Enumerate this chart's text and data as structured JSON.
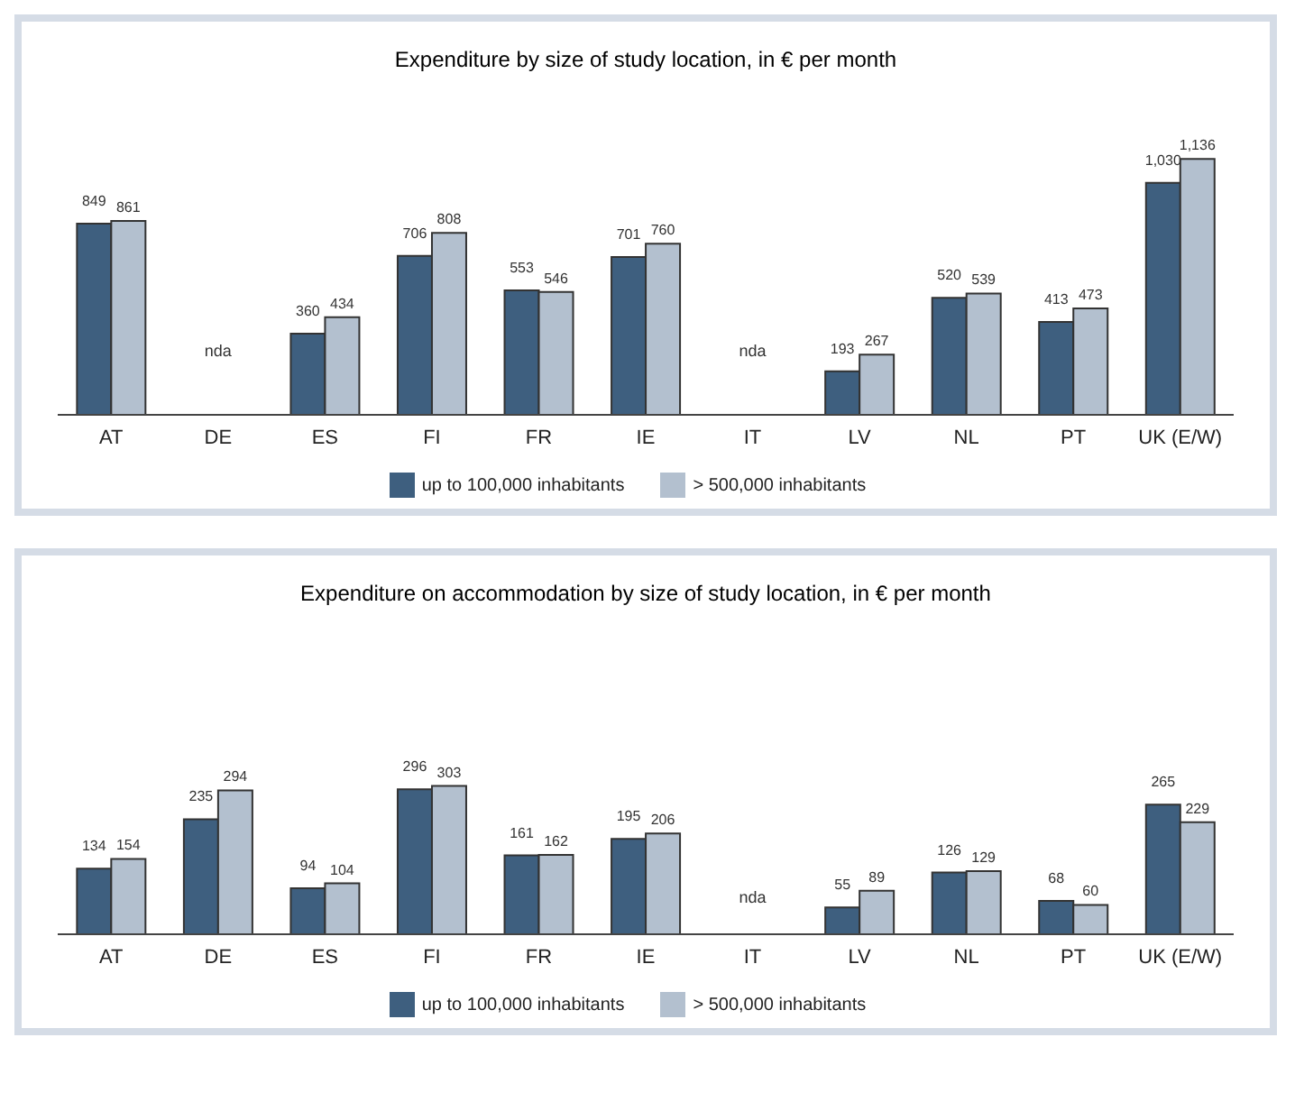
{
  "chart_data": [
    {
      "type": "bar",
      "title": "Expenditure by size of study location, in € per month",
      "categories": [
        "AT",
        "DE",
        "ES",
        "FI",
        "FR",
        "IE",
        "IT",
        "LV",
        "NL",
        "PT",
        "UK (E/W)"
      ],
      "series": [
        {
          "name": "up to 100,000 inhabitants",
          "color": "#3e5f7f",
          "values": [
            849,
            null,
            360,
            706,
            553,
            701,
            null,
            193,
            520,
            413,
            1030
          ],
          "value_labels": [
            "849",
            null,
            "360",
            "706",
            "553",
            "701",
            null,
            "193",
            "520",
            "413",
            "1,030"
          ]
        },
        {
          "name": "> 500,000 inhabitants",
          "color": "#b3c0cf",
          "values": [
            861,
            null,
            434,
            808,
            546,
            760,
            null,
            267,
            539,
            473,
            1136
          ],
          "value_labels": [
            "861",
            null,
            "434",
            "808",
            "546",
            "760",
            null,
            "267",
            "539",
            "473",
            "1,136"
          ]
        }
      ],
      "annotations": [
        "nda",
        "nda"
      ],
      "legend": "bottom",
      "tick_labels": "x"
    },
    {
      "type": "bar",
      "title": "Expenditure on accommodation by size of study location, in € per month",
      "categories": [
        "AT",
        "DE",
        "ES",
        "FI",
        "FR",
        "IE",
        "IT",
        "LV",
        "NL",
        "PT",
        "UK (E/W)"
      ],
      "series": [
        {
          "name": "up to 100,000 inhabitants",
          "color": "#3e5f7f",
          "values": [
            134,
            235,
            94,
            296,
            161,
            195,
            null,
            55,
            126,
            68,
            265
          ]
        },
        {
          "name": "> 500,000 inhabitants",
          "color": "#b3c0cf",
          "values": [
            154,
            294,
            104,
            303,
            162,
            206,
            null,
            89,
            129,
            60,
            229
          ]
        }
      ],
      "annotations": [
        "nda"
      ],
      "data_labels": true,
      "legend": "bottom",
      "tick_labels": "x"
    }
  ]
}
